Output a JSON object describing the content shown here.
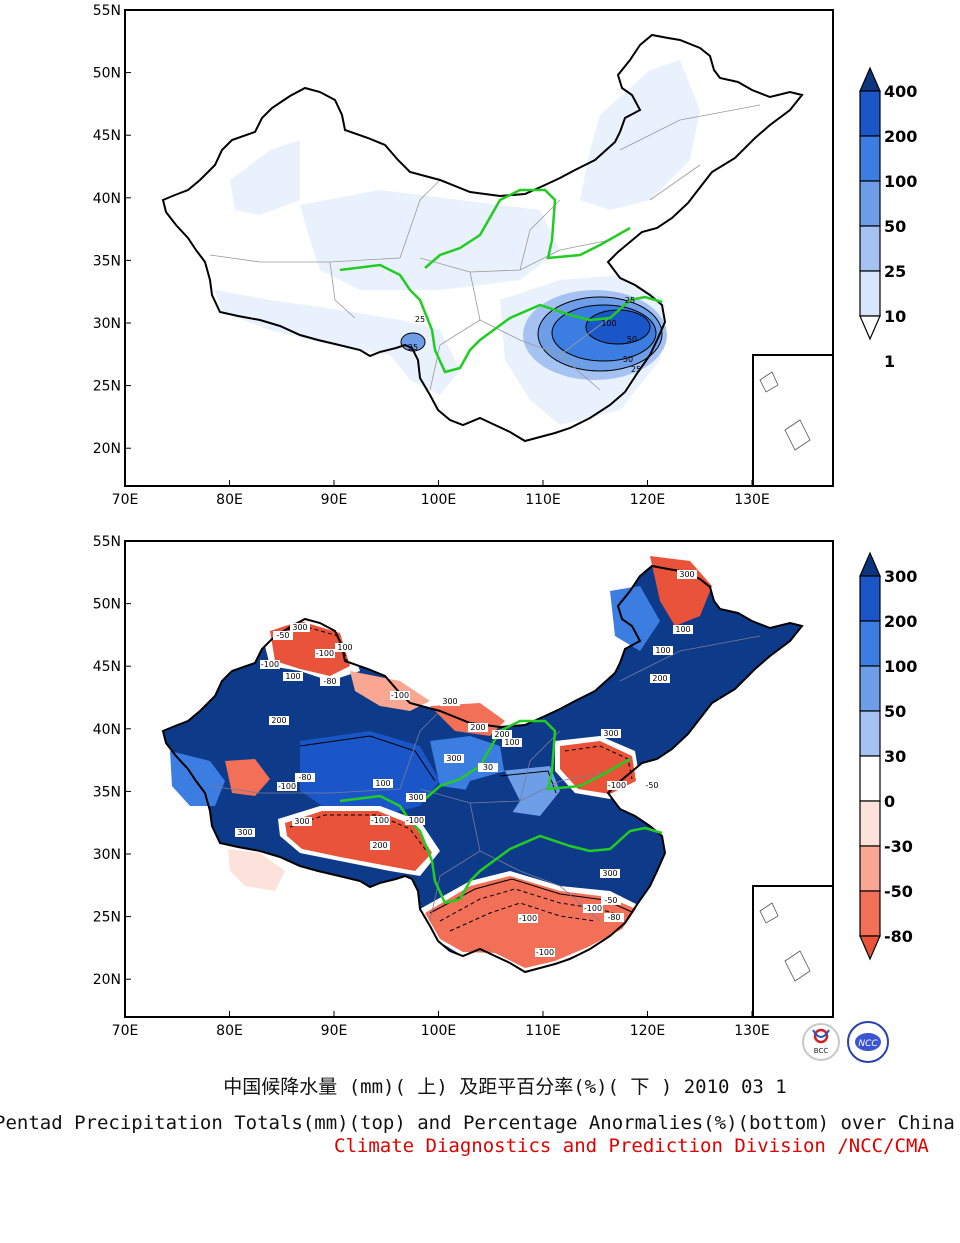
{
  "axes": {
    "y_ticks": [
      "55N",
      "50N",
      "45N",
      "40N",
      "35N",
      "30N",
      "25N",
      "20N"
    ],
    "x_ticks": [
      "70E",
      "80E",
      "90E",
      "100E",
      "110E",
      "120E",
      "130E"
    ]
  },
  "top_map": {
    "colorbar_labels": [
      "400",
      "200",
      "100",
      "50",
      "25",
      "10",
      "1"
    ],
    "colorbar_colors": [
      "#0c3580",
      "#1a56c8",
      "#3b7de0",
      "#6e9ee8",
      "#a6c2f2",
      "#d8e6fb",
      "#ffffff"
    ],
    "contour_labels": [
      "25",
      "50",
      "100",
      "25",
      "50",
      "25",
      "25"
    ]
  },
  "bottom_map": {
    "colorbar_labels": [
      "300",
      "200",
      "100",
      "50",
      "30",
      "0",
      "-30",
      "-50",
      "-80"
    ],
    "colorbar_colors": [
      "#0c3580",
      "#1a56c8",
      "#3b7de0",
      "#6e9ee8",
      "#a6c2f2",
      "#ffffff",
      "#fde2dc",
      "#f9a793",
      "#f27058",
      "#e8533a"
    ],
    "contour_labels": [
      "-100",
      "300",
      "100",
      "200",
      "-50",
      "-100",
      "-80",
      "100",
      "300",
      "-100",
      "200",
      "300",
      "-80",
      "-100",
      "300",
      "-100",
      "300",
      "100",
      "30",
      "200",
      "-100",
      "300",
      "-50",
      "100",
      "300",
      "100",
      "200",
      "-100",
      "300",
      "-50",
      "-80",
      "-100",
      "-100",
      "300",
      "200",
      "100",
      "-100"
    ]
  },
  "logos": {
    "bcc": "BCC",
    "ncc": "NCC"
  },
  "caption": {
    "chinese": "中国候降水量 (mm)( 上) 及距平百分率(%)( 下 ) 2010 03 1",
    "english": "Pentad Precipitation Totals(mm)(top) and Percentage Anormalies(%)(bottom) over China",
    "division": "Climate Diagnostics and Prediction Division /NCC/CMA"
  }
}
